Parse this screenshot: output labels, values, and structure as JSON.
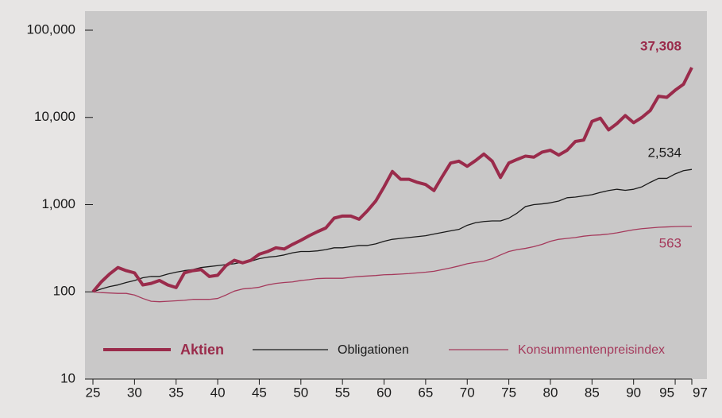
{
  "chart_data": {
    "type": "line",
    "x": [
      25,
      26,
      27,
      28,
      29,
      30,
      31,
      32,
      33,
      34,
      35,
      36,
      37,
      38,
      39,
      40,
      41,
      42,
      43,
      44,
      45,
      46,
      47,
      48,
      49,
      50,
      51,
      52,
      53,
      54,
      55,
      56,
      57,
      58,
      59,
      60,
      61,
      62,
      63,
      64,
      65,
      66,
      67,
      68,
      69,
      70,
      71,
      72,
      73,
      74,
      75,
      76,
      77,
      78,
      79,
      80,
      81,
      82,
      83,
      84,
      85,
      86,
      87,
      88,
      89,
      90,
      91,
      92,
      93,
      94,
      95,
      96,
      97
    ],
    "series": [
      {
        "name": "Aktien",
        "color": "#9a2b4b",
        "end_label": "37,308",
        "values": [
          100,
          130,
          160,
          190,
          175,
          165,
          120,
          125,
          135,
          120,
          112,
          165,
          175,
          180,
          150,
          155,
          200,
          230,
          215,
          230,
          270,
          290,
          320,
          310,
          350,
          390,
          440,
          490,
          540,
          700,
          740,
          740,
          680,
          850,
          1100,
          1600,
          2400,
          1950,
          1950,
          1800,
          1700,
          1450,
          2100,
          3000,
          3150,
          2750,
          3200,
          3800,
          3150,
          2050,
          3000,
          3300,
          3600,
          3500,
          4000,
          4200,
          3700,
          4200,
          5300,
          5500,
          9000,
          9800,
          7200,
          8500,
          10500,
          8700,
          10000,
          12000,
          17500,
          17000,
          20500,
          24000,
          37308
        ]
      },
      {
        "name": "Obligationen",
        "color": "#1a1a1a",
        "end_label": "2,534",
        "values": [
          100,
          108,
          115,
          120,
          128,
          135,
          145,
          150,
          150,
          160,
          168,
          175,
          180,
          190,
          195,
          200,
          205,
          210,
          220,
          225,
          240,
          250,
          255,
          265,
          280,
          290,
          290,
          295,
          305,
          320,
          320,
          330,
          340,
          340,
          355,
          380,
          400,
          410,
          420,
          430,
          440,
          460,
          480,
          500,
          520,
          580,
          620,
          640,
          650,
          650,
          700,
          800,
          950,
          1000,
          1020,
          1050,
          1100,
          1200,
          1220,
          1260,
          1300,
          1380,
          1450,
          1500,
          1460,
          1500,
          1600,
          1800,
          2000,
          2000,
          2250,
          2450,
          2534
        ]
      },
      {
        "name": "Konsummentenpreisindex",
        "color": "#a53a5c",
        "end_label": "563",
        "values": [
          100,
          98,
          97,
          96,
          96,
          92,
          84,
          78,
          77,
          78,
          79,
          80,
          82,
          82,
          82,
          84,
          92,
          102,
          108,
          110,
          113,
          120,
          125,
          128,
          130,
          135,
          138,
          142,
          143,
          143,
          143,
          147,
          150,
          152,
          154,
          157,
          158,
          160,
          162,
          165,
          168,
          172,
          180,
          188,
          198,
          210,
          218,
          225,
          240,
          265,
          290,
          305,
          315,
          330,
          350,
          380,
          400,
          410,
          420,
          435,
          445,
          450,
          460,
          475,
          495,
          515,
          530,
          540,
          550,
          555,
          560,
          563,
          563
        ]
      }
    ],
    "xlim": [
      25,
      97
    ],
    "xticks": [
      25,
      30,
      35,
      40,
      45,
      50,
      55,
      60,
      65,
      70,
      75,
      80,
      85,
      90,
      95,
      97
    ],
    "ylim": [
      10,
      100000
    ],
    "log_scale": true,
    "yticks": [
      10,
      100,
      {
        "value": 1000,
        "label": "1,000"
      },
      {
        "value": 10000,
        "label": "10,000"
      },
      {
        "value": 100000,
        "label": "100,000"
      }
    ]
  }
}
